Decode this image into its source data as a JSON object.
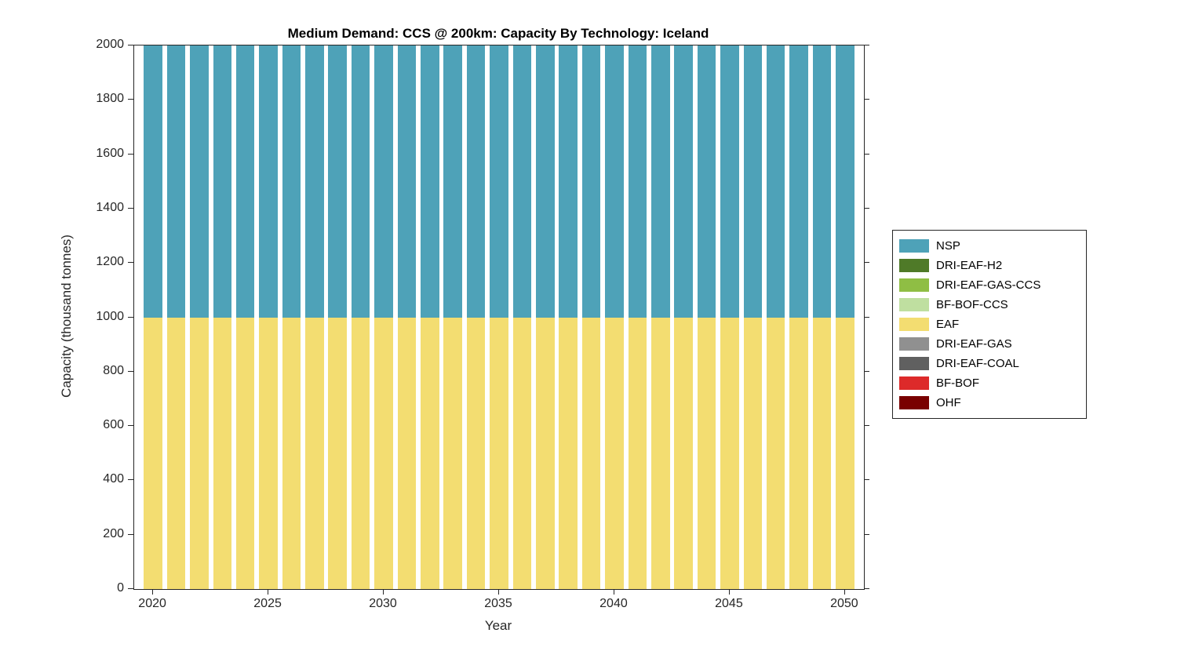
{
  "chart_data": {
    "type": "bar",
    "stacked": true,
    "title": "Medium Demand: CCS @ 200km: Capacity By Technology: Iceland",
    "xlabel": "Year",
    "ylabel": "Capacity (thousand tonnes)",
    "ylim": [
      0,
      2000
    ],
    "yticks": [
      0,
      200,
      400,
      600,
      800,
      1000,
      1200,
      1400,
      1600,
      1800,
      2000
    ],
    "xticks": [
      2020,
      2025,
      2030,
      2035,
      2040,
      2045,
      2050
    ],
    "x": [
      2020,
      2021,
      2022,
      2023,
      2024,
      2025,
      2026,
      2027,
      2028,
      2029,
      2030,
      2031,
      2032,
      2033,
      2034,
      2035,
      2036,
      2037,
      2038,
      2039,
      2040,
      2041,
      2042,
      2043,
      2044,
      2045,
      2046,
      2047,
      2048,
      2049,
      2050
    ],
    "series": [
      {
        "name": "EAF",
        "color": "#F3DD71",
        "values": [
          1000,
          1000,
          1000,
          1000,
          1000,
          1000,
          1000,
          1000,
          1000,
          1000,
          1000,
          1000,
          1000,
          1000,
          1000,
          1000,
          1000,
          1000,
          1000,
          1000,
          1000,
          1000,
          1000,
          1000,
          1000,
          1000,
          1000,
          1000,
          1000,
          1000,
          1000
        ]
      },
      {
        "name": "NSP",
        "color": "#4EA2B8",
        "values": [
          1000,
          1000,
          1000,
          1000,
          1000,
          1000,
          1000,
          1000,
          1000,
          1000,
          1000,
          1000,
          1000,
          1000,
          1000,
          1000,
          1000,
          1000,
          1000,
          1000,
          1000,
          1000,
          1000,
          1000,
          1000,
          1000,
          1000,
          1000,
          1000,
          1000,
          1000
        ]
      }
    ],
    "note": "EAF occupies 0-1000; NSP fills from 1000 to the top of the axis (bars reach the 2000 axis limit).",
    "legend_position": "right-outside",
    "grid": false,
    "legend": [
      {
        "label": "NSP",
        "color": "#4EA2B8"
      },
      {
        "label": "DRI-EAF-H2",
        "color": "#4F7A28"
      },
      {
        "label": "DRI-EAF-GAS-CCS",
        "color": "#8FBE44"
      },
      {
        "label": "BF-BOF-CCS",
        "color": "#BFDFA0"
      },
      {
        "label": "EAF",
        "color": "#F3DD71"
      },
      {
        "label": "DRI-EAF-GAS",
        "color": "#909090"
      },
      {
        "label": "DRI-EAF-COAL",
        "color": "#606060"
      },
      {
        "label": "BF-BOF",
        "color": "#DD2A2A"
      },
      {
        "label": "OHF",
        "color": "#790000"
      }
    ]
  }
}
